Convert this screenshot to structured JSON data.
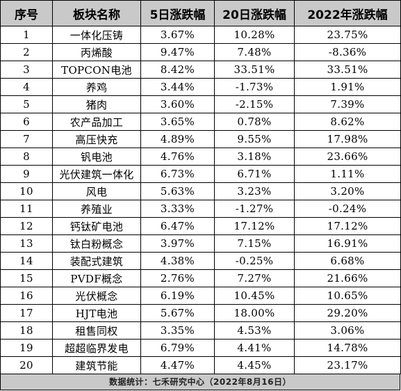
{
  "headers": [
    "序号",
    "板块名称",
    "5日涨跌幅",
    "20日涨跌幅",
    "2022年涨跌幅"
  ],
  "rows": [
    [
      "1",
      "一体化压铸",
      "3.67%",
      "10.28%",
      "23.75%"
    ],
    [
      "2",
      "丙烯酸",
      "9.47%",
      "7.48%",
      "-8.36%"
    ],
    [
      "3",
      "TOPCON电池",
      "8.42%",
      "33.51%",
      "33.51%"
    ],
    [
      "4",
      "养鸡",
      "3.44%",
      "-1.73%",
      "1.91%"
    ],
    [
      "5",
      "猪肉",
      "3.60%",
      "-2.15%",
      "7.39%"
    ],
    [
      "6",
      "农产品加工",
      "3.65%",
      "0.78%",
      "8.62%"
    ],
    [
      "7",
      "高压快充",
      "4.89%",
      "9.55%",
      "17.98%"
    ],
    [
      "8",
      "钒电池",
      "4.76%",
      "3.18%",
      "23.66%"
    ],
    [
      "9",
      "光伏建筑一体化",
      "6.73%",
      "6.71%",
      "1.11%"
    ],
    [
      "10",
      "风电",
      "5.63%",
      "3.23%",
      "3.20%"
    ],
    [
      "11",
      "养殖业",
      "3.33%",
      "-1.27%",
      "-0.24%"
    ],
    [
      "12",
      "钙钛矿电池",
      "6.47%",
      "17.12%",
      "17.12%"
    ],
    [
      "13",
      "钛白粉概念",
      "3.97%",
      "7.15%",
      "16.91%"
    ],
    [
      "14",
      "装配式建筑",
      "4.38%",
      "-0.25%",
      "6.68%"
    ],
    [
      "15",
      "PVDF概念",
      "2.76%",
      "7.27%",
      "21.66%"
    ],
    [
      "16",
      "光伏概念",
      "6.19%",
      "10.45%",
      "10.65%"
    ],
    [
      "17",
      "HJT电池",
      "5.67%",
      "18.00%",
      "29.20%"
    ],
    [
      "18",
      "租售同权",
      "3.35%",
      "4.53%",
      "3.06%"
    ],
    [
      "19",
      "超超临界发电",
      "6.79%",
      "4.41%",
      "14.78%"
    ],
    [
      "20",
      "建筑节能",
      "4.47%",
      "4.45%",
      "23.17%"
    ]
  ],
  "footer": "数据统计：七禾研究中心（2022年8月16日）"
}
